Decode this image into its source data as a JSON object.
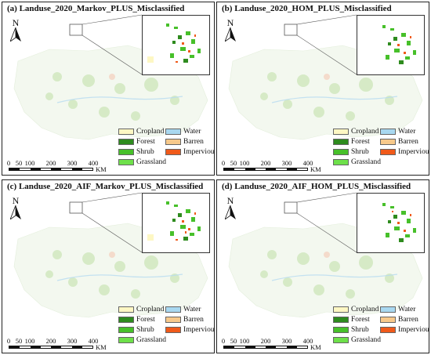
{
  "panels": [
    {
      "title": "(a) Landuse_2020_Markov_PLUS_Misclassified"
    },
    {
      "title": "(b) Landuse_2020_HOM_PLUS_Misclassified"
    },
    {
      "title": "(c) Landuse_2020_AIF_Markov_PLUS_Misclassified"
    },
    {
      "title": "(d) Landuse_2020_AIF_HOM_PLUS_Misclassified"
    }
  ],
  "north_label": "N",
  "scale": {
    "ticks": [
      "0",
      "50",
      "100",
      "200",
      "300",
      "400"
    ],
    "unit": "KM"
  },
  "legend": [
    {
      "label": "Cropland",
      "color": "#fdf7c3"
    },
    {
      "label": "Water",
      "color": "#a8d8f0"
    },
    {
      "label": "Forest",
      "color": "#2e8b1e"
    },
    {
      "label": "Barren",
      "color": "#f7c98b"
    },
    {
      "label": "Shrub",
      "color": "#47c02a"
    },
    {
      "label": "Impervious",
      "color": "#f05a1a"
    },
    {
      "label": "Grassland",
      "color": "#6ee04a"
    }
  ]
}
